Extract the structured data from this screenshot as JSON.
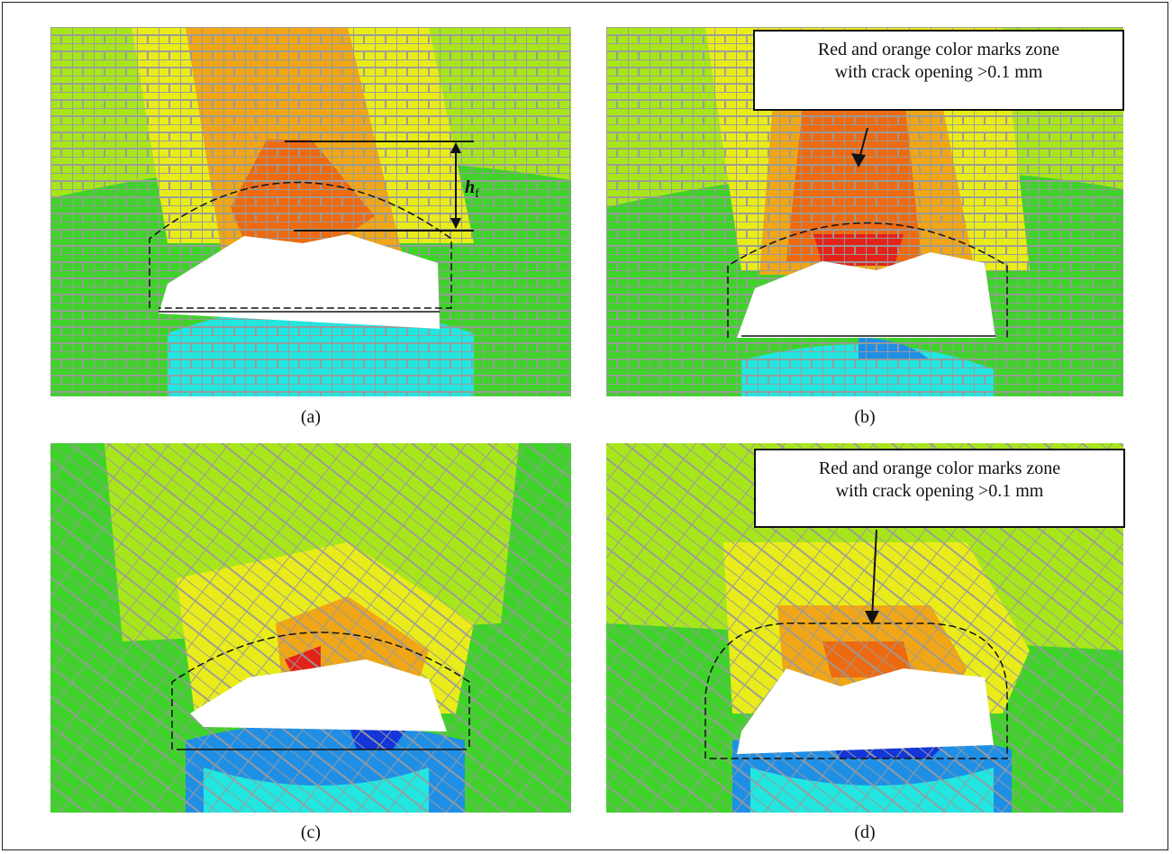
{
  "panels": [
    {
      "id": "a",
      "caption": "(a)"
    },
    {
      "id": "b",
      "caption": "(b)"
    },
    {
      "id": "c",
      "caption": "(c)"
    },
    {
      "id": "d",
      "caption": "(d)"
    }
  ],
  "callout_b": {
    "line1": "Red and orange color marks zone",
    "line2": "with crack opening >0.1 mm"
  },
  "callout_d": {
    "line1": "Red and orange color marks zone",
    "line2": "with crack opening >0.1 mm"
  },
  "dimension_label": {
    "symbol": "h",
    "subscript": "f"
  },
  "colors": {
    "green": "#3fd22a",
    "yellow_green": "#a8e61c",
    "yellow": "#e9ec1a",
    "orange": "#f0a617",
    "dark_orange": "#ee6a10",
    "red": "#e3231a",
    "cyan": "#22e6e0",
    "blue": "#1f8fe6",
    "dark_blue": "#1236d8",
    "mesh": "#9a9a9a",
    "opening": "#ffffff"
  }
}
